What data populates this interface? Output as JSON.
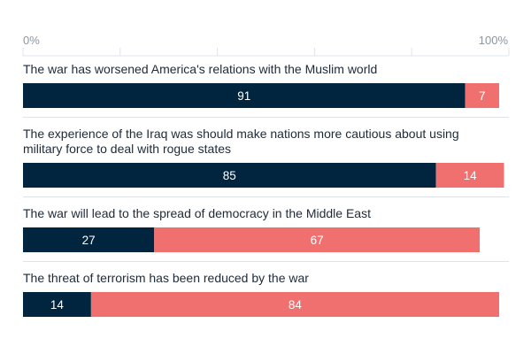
{
  "chart_data": {
    "type": "bar",
    "orientation": "horizontal",
    "stacked": true,
    "xlim": [
      0,
      100
    ],
    "x_ticks": [
      "0%",
      "100%"
    ],
    "grid": true,
    "colors": {
      "series_1": "#02253f",
      "series_2": "#f07070"
    },
    "categories": [
      [
        "The war has worsened America's relations with the Muslim world"
      ],
      [
        "The experience of the Iraq was should make nations more cautious about using",
        "military force to deal with rogue states"
      ],
      [
        "The war will lead to the spread of democracy in the Middle East"
      ],
      [
        "The threat of terrorism has been reduced by the war"
      ]
    ],
    "series": [
      {
        "values": [
          91,
          85,
          27,
          14
        ]
      },
      {
        "values": [
          7,
          14,
          67,
          84
        ]
      }
    ]
  }
}
